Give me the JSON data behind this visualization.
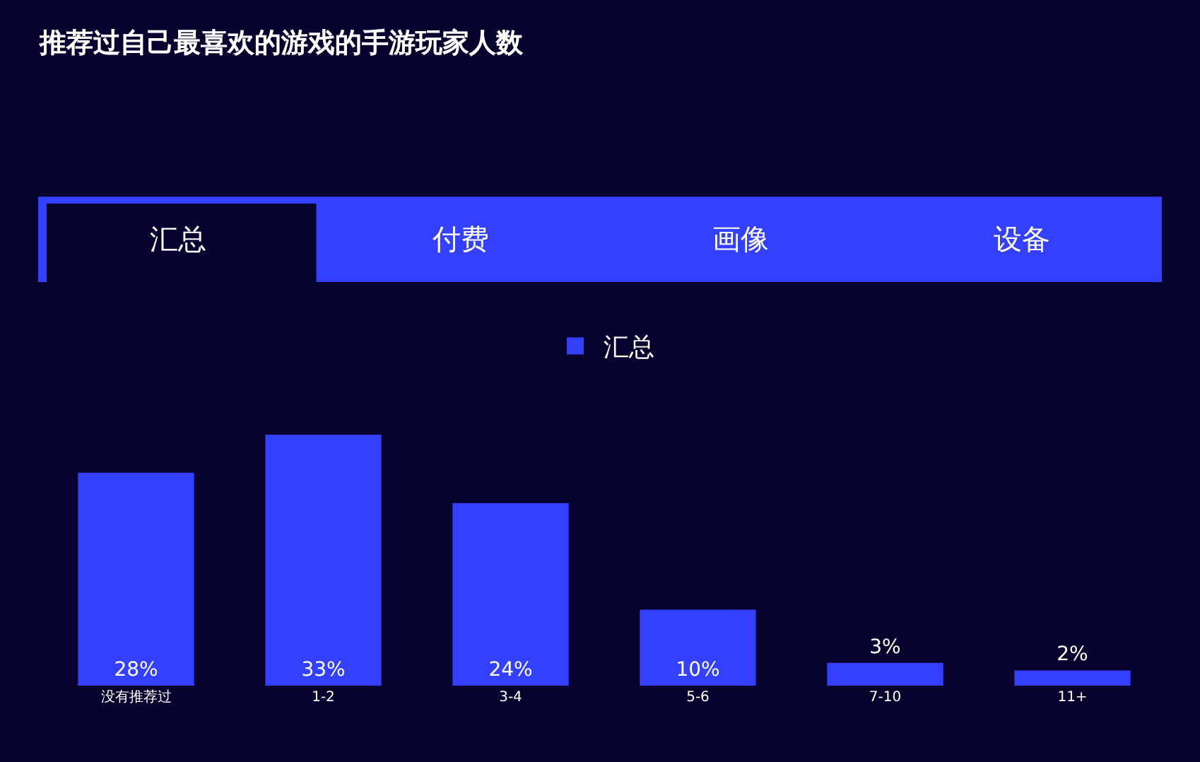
{
  "chart_data": {
    "type": "bar",
    "title": "推荐过自己最喜欢的游戏的手游玩家人数",
    "categories": [
      "没有推荐过",
      "1-2",
      "3-4",
      "5-6",
      "7-10",
      "11+"
    ],
    "series": [
      {
        "name": "汇总",
        "color": "#3440ff",
        "values": [
          28,
          33,
          24,
          10,
          3,
          2
        ],
        "value_labels": [
          "28%",
          "33%",
          "24%",
          "10%",
          "3%",
          "2%"
        ]
      }
    ],
    "annotations": [
      "汇总",
      "付费",
      "画像",
      "设备"
    ],
    "legend": "top",
    "grid": false
  }
}
